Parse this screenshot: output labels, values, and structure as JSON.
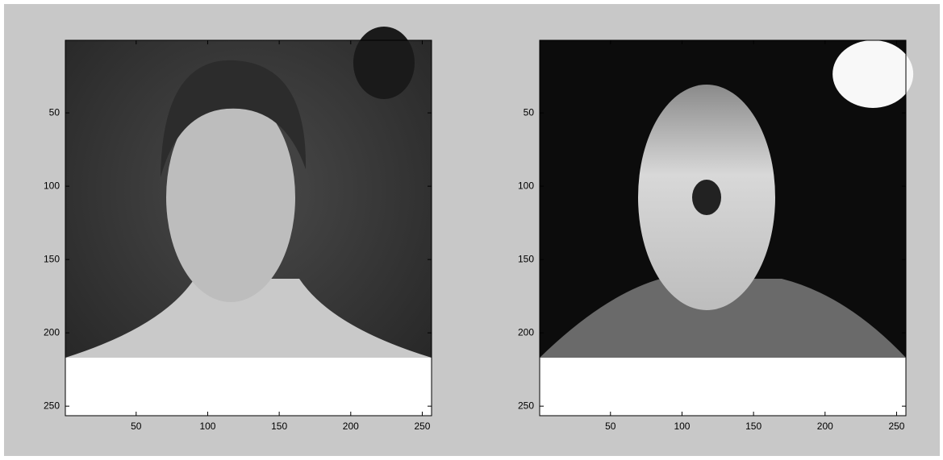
{
  "chart_data": [
    {
      "type": "image",
      "xlim": [
        0.5,
        256.5
      ],
      "ylim": [
        0.5,
        256.5
      ],
      "ydir": "reverse",
      "xticks": [
        50,
        100,
        150,
        200,
        250
      ],
      "yticks": [
        50,
        100,
        150,
        200,
        250
      ]
    },
    {
      "type": "image",
      "xlim": [
        0.5,
        256.5
      ],
      "ylim": [
        0.5,
        256.5
      ],
      "ydir": "reverse",
      "xticks": [
        50,
        100,
        150,
        200,
        250
      ],
      "yticks": [
        50,
        100,
        150,
        200,
        250
      ]
    }
  ]
}
